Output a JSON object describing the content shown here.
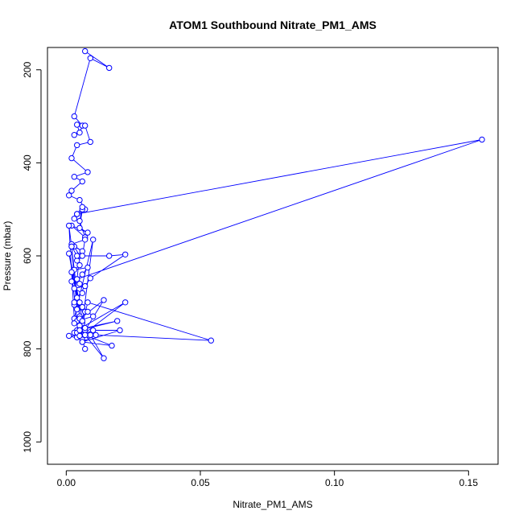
{
  "chart_data": {
    "type": "line",
    "title": "ATOM1 Southbound Nitrate_PM1_AMS",
    "xlabel": "Nitrate_PM1_AMS",
    "ylabel": "Pressure (mbar)",
    "xlim": [
      -0.007,
      0.161
    ],
    "ylim": [
      1048,
      152
    ],
    "y_reversed": true,
    "x_ticks": [
      0.0,
      0.05,
      0.1,
      0.15
    ],
    "x_tick_labels": [
      "0.00",
      "0.05",
      "0.10",
      "0.15"
    ],
    "y_ticks": [
      200,
      400,
      600,
      800,
      1000
    ],
    "y_tick_labels": [
      "200",
      "400",
      "600",
      "800",
      "1000"
    ],
    "grid": false,
    "legend": "none",
    "series_color": "#0000ff",
    "series": [
      {
        "x": [
          0.007,
          0.016,
          0.009,
          0.003,
          0.006,
          0.004,
          0.005,
          0.003,
          0.007,
          0.009,
          0.004,
          0.002,
          0.008,
          0.003,
          0.006,
          0.002,
          0.001,
          0.005,
          0.007,
          0.004,
          0.003,
          0.006,
          0.005,
          0.008,
          0.002,
          0.007,
          0.005,
          0.006,
          0.004,
          0.155,
          0.004,
          0.005,
          0.003,
          0.006,
          0.002,
          0.007,
          0.006,
          0.004,
          0.005,
          0.003,
          0.008,
          0.006,
          0.004,
          0.002,
          0.005,
          0.007,
          0.003,
          0.006,
          0.004,
          0.001,
          0.005,
          0.003,
          0.006,
          0.007,
          0.004,
          0.002,
          0.005,
          0.006,
          0.01,
          0.003,
          0.001,
          0.002,
          0.004,
          0.016,
          0.022,
          0.009,
          0.003,
          0.006,
          0.008,
          0.01,
          0.004,
          0.002,
          0.007,
          0.005,
          0.003,
          0.014,
          0.006,
          0.022,
          0.004,
          0.005,
          0.006,
          0.003,
          0.005,
          0.007,
          0.019,
          0.005,
          0.004,
          0.01,
          0.02,
          0.006,
          0.007,
          0.004,
          0.008,
          0.001,
          0.006,
          0.005,
          0.008,
          0.054,
          0.011,
          0.006,
          0.017,
          0.007,
          0.014,
          0.009,
          0.005,
          0.007
        ],
        "y": [
          160,
          196,
          175,
          300,
          320,
          318,
          335,
          340,
          320,
          355,
          362,
          390,
          420,
          430,
          440,
          460,
          470,
          480,
          500,
          510,
          520,
          500,
          540,
          550,
          535,
          560,
          525,
          495,
          510,
          350,
          650,
          600,
          580,
          590,
          575,
          565,
          600,
          610,
          620,
          630,
          625,
          640,
          650,
          655,
          660,
          665,
          670,
          680,
          690,
          595,
          700,
          705,
          710,
          720,
          715,
          580,
          730,
          745,
          565,
          735,
          535,
          580,
          600,
          600,
          597,
          648,
          700,
          710,
          720,
          730,
          740,
          635,
          760,
          735,
          745,
          695,
          770,
          700,
          760,
          750,
          740,
          765,
          770,
          755,
          740,
          760,
          775,
          760,
          760,
          785,
          770,
          765,
          770,
          772,
          780,
          772,
          700,
          782,
          770,
          785,
          793,
          770,
          820,
          770,
          760,
          800
        ]
      }
    ]
  }
}
